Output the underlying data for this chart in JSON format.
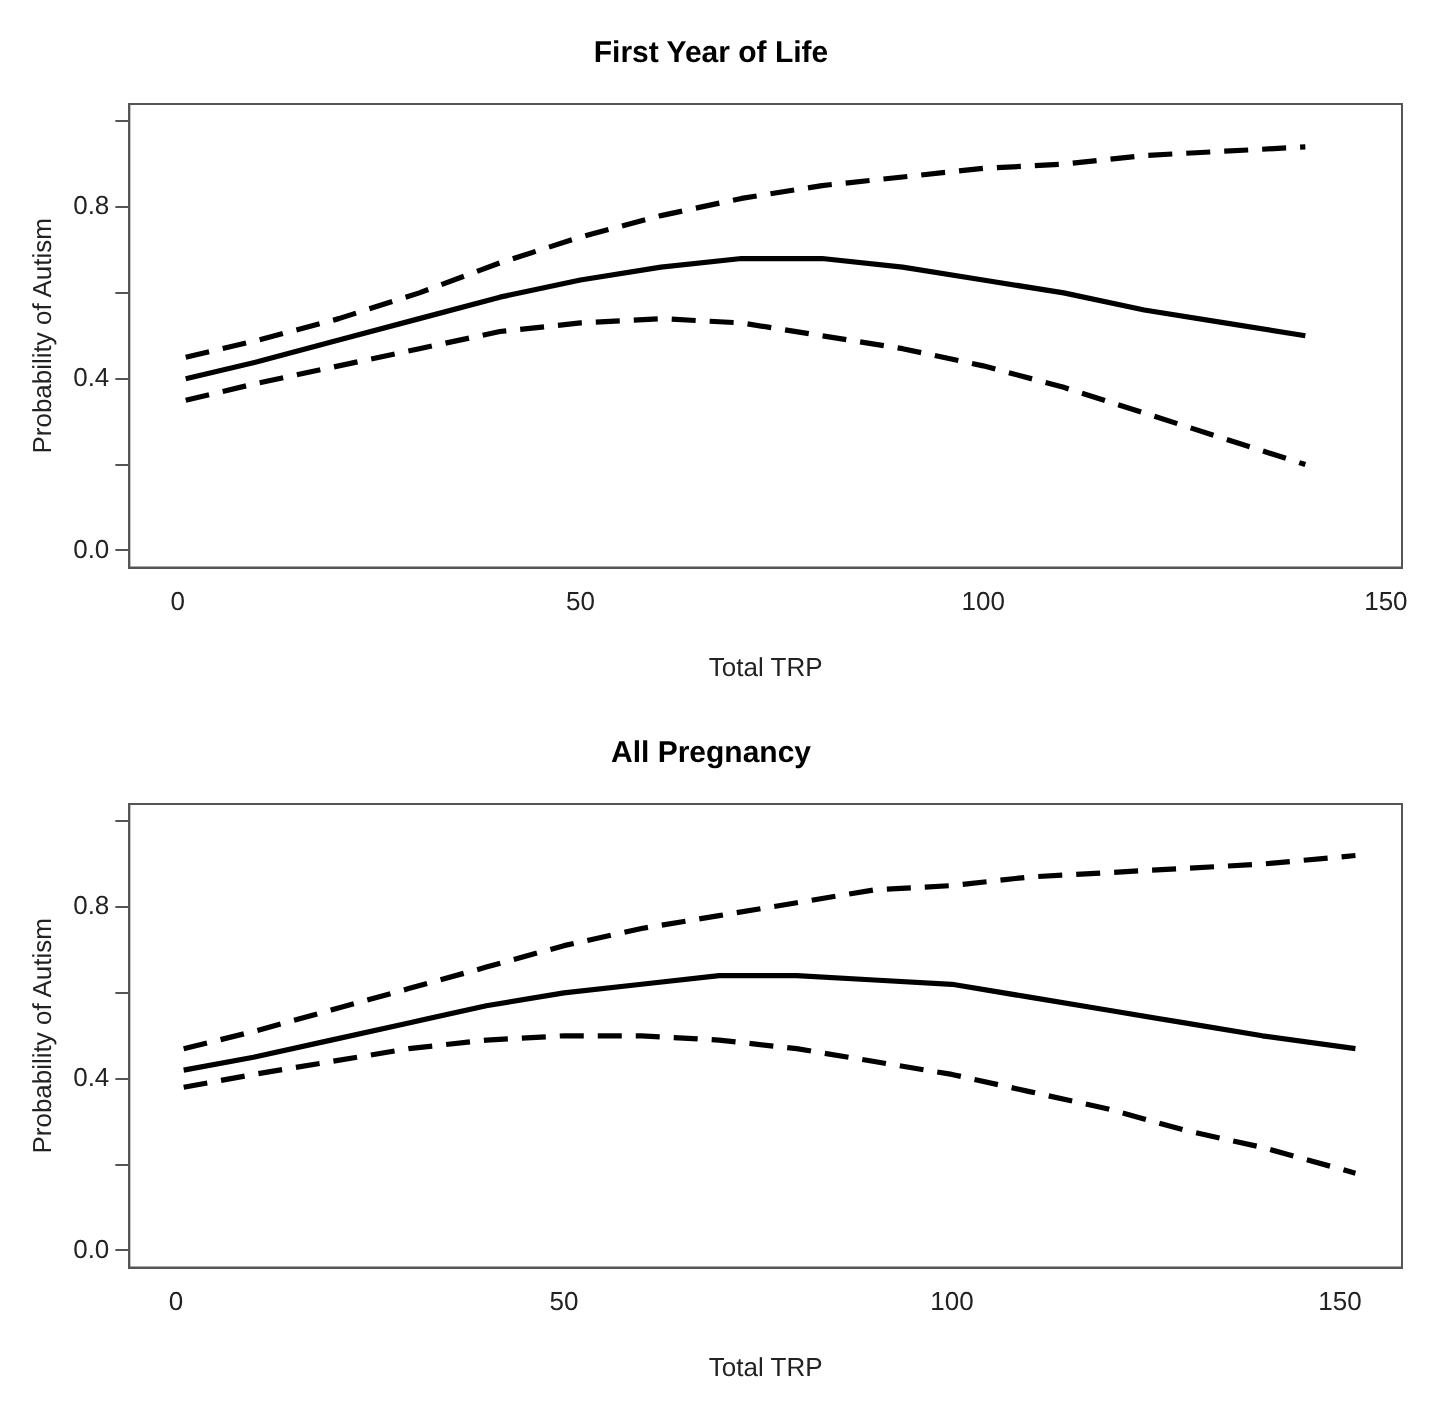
{
  "chart_data": [
    {
      "type": "line",
      "title": "First Year of Life",
      "xlabel": "Total TRP",
      "ylabel": "Probability of Autism",
      "xlim": [
        -6,
        152
      ],
      "xticks": [
        0,
        50,
        100,
        150
      ],
      "ylim": [
        -0.04,
        1.04
      ],
      "yticks": [
        "0.0",
        {
          "value": 0.2,
          "label": null
        },
        {
          "value": 0.4,
          "label": "0.4"
        },
        {
          "value": 0.6,
          "label": null
        },
        {
          "value": 0.8,
          "label": "0.8"
        },
        {
          "value": 1.0,
          "label": null
        }
      ],
      "grid": false,
      "legend": false,
      "marker": "none",
      "x": [
        1,
        10,
        20,
        30,
        40,
        50,
        60,
        70,
        80,
        90,
        100,
        110,
        120,
        130,
        140
      ],
      "series": [
        {
          "color": "#000000",
          "line_style": "solid",
          "values": [
            0.4,
            0.44,
            0.49,
            0.54,
            0.59,
            0.63,
            0.66,
            0.68,
            0.68,
            0.66,
            0.63,
            0.6,
            0.56,
            0.53,
            0.5
          ]
        },
        {
          "color": "#000000",
          "line_style": "dashed",
          "values": [
            0.45,
            0.49,
            0.54,
            0.6,
            0.67,
            0.73,
            0.78,
            0.82,
            0.85,
            0.87,
            0.89,
            0.9,
            0.92,
            0.93,
            0.94
          ]
        },
        {
          "color": "#000000",
          "line_style": "dashed",
          "values": [
            0.35,
            0.39,
            0.43,
            0.47,
            0.51,
            0.53,
            0.54,
            0.53,
            0.5,
            0.47,
            0.43,
            0.38,
            0.32,
            0.26,
            0.2
          ]
        }
      ]
    },
    {
      "type": "line",
      "title": "All Pregnancy",
      "xlabel": "Total TRP",
      "ylabel": "Probability of Autism",
      "xlim": [
        -6,
        158
      ],
      "xticks": [
        0,
        50,
        100,
        150
      ],
      "ylim": [
        -0.04,
        1.04
      ],
      "yticks": [
        {
          "value": 0,
          "label": "0.0"
        },
        {
          "value": 0.2,
          "label": null
        },
        {
          "value": 0.4,
          "label": "0.4"
        },
        {
          "value": 0.6,
          "label": null
        },
        {
          "value": 0.8,
          "label": "0.8"
        },
        {
          "value": 1.0,
          "label": null
        }
      ],
      "grid": false,
      "legend": false,
      "marker": "none",
      "x": [
        1,
        10,
        20,
        30,
        40,
        50,
        60,
        70,
        80,
        90,
        100,
        110,
        120,
        130,
        140,
        152
      ],
      "series": [
        {
          "color": "#000000",
          "line_style": "solid",
          "values": [
            0.42,
            0.45,
            0.49,
            0.53,
            0.57,
            0.6,
            0.62,
            0.64,
            0.64,
            0.63,
            0.62,
            0.59,
            0.56,
            0.53,
            0.5,
            0.47
          ]
        },
        {
          "color": "#000000",
          "line_style": "dashed",
          "values": [
            0.47,
            0.51,
            0.56,
            0.61,
            0.66,
            0.71,
            0.75,
            0.78,
            0.81,
            0.84,
            0.85,
            0.87,
            0.88,
            0.89,
            0.9,
            0.92
          ]
        },
        {
          "color": "#000000",
          "line_style": "dashed",
          "values": [
            0.38,
            0.41,
            0.44,
            0.47,
            0.49,
            0.5,
            0.5,
            0.49,
            0.47,
            0.44,
            0.41,
            0.37,
            0.33,
            0.28,
            0.24,
            0.18
          ]
        }
      ]
    }
  ]
}
